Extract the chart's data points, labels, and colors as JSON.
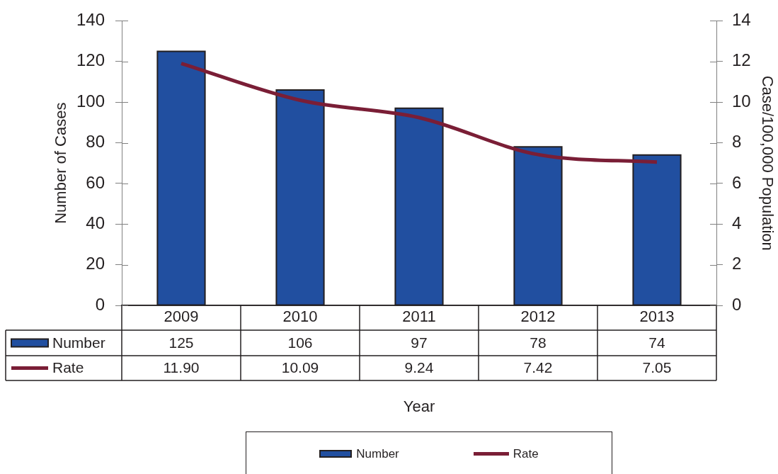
{
  "chart_data": {
    "type": "bar",
    "xlabel": "Year",
    "ylabel": "Number of Cases",
    "y2label": "Case/100,000 Population",
    "categories": [
      "2009",
      "2010",
      "2011",
      "2012",
      "2013"
    ],
    "series": [
      {
        "name": "Number",
        "color": "#214fa0",
        "values": [
          125,
          106,
          97,
          78,
          74
        ],
        "value_labels": [
          "125",
          "106",
          "97",
          "78",
          "74"
        ]
      },
      {
        "name": "Rate",
        "type": "line",
        "axis": "y2",
        "color": "#7a1e36",
        "values": [
          11.9,
          10.09,
          9.24,
          7.42,
          7.05
        ],
        "value_labels": [
          "11.90",
          "10.09",
          "9.24",
          "7.42",
          "7.05"
        ]
      }
    ],
    "ylim": [
      0,
      140
    ],
    "yticks": [
      0,
      20,
      40,
      60,
      80,
      100,
      120,
      140
    ],
    "y2lim": [
      0,
      14
    ],
    "y2ticks": [
      0,
      2,
      4,
      6,
      8,
      10,
      12,
      14
    ],
    "grid": false,
    "legend": "bottom",
    "marker": "none"
  }
}
